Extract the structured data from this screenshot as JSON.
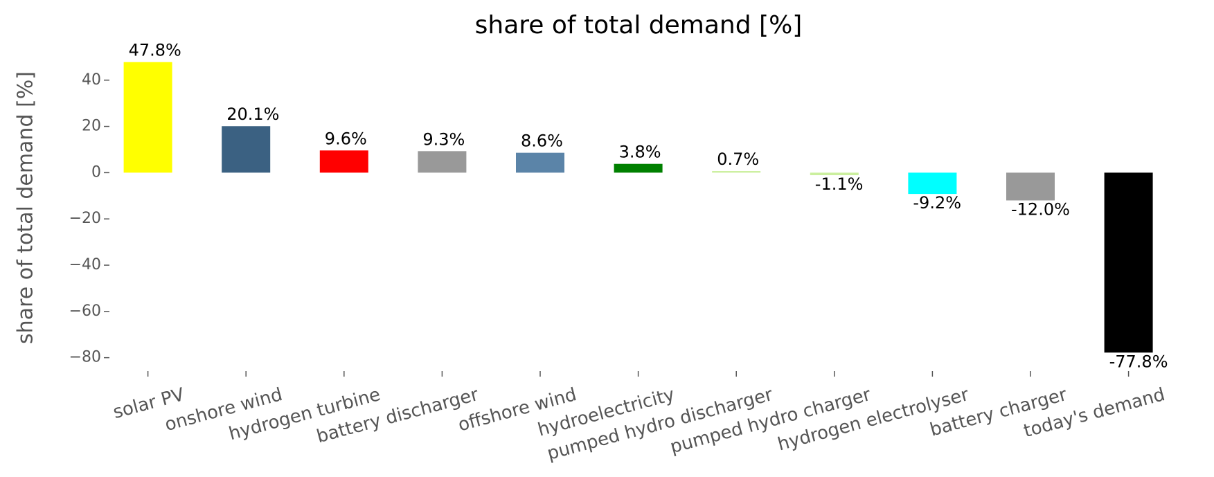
{
  "chart_data": {
    "type": "bar",
    "title": "share of total demand [%]",
    "y_label": "share of total demand [%]",
    "categories": [
      "solar PV",
      "onshore wind",
      "hydrogen turbine",
      "battery discharger",
      "offshore wind",
      "hydroelectricity",
      "pumped hydro discharger",
      "pumped hydro charger",
      "hydrogen electrolyser",
      "battery charger",
      "today's demand"
    ],
    "values": [
      47.8,
      20.1,
      9.6,
      9.3,
      8.6,
      3.8,
      0.7,
      -1.1,
      -9.2,
      -12.0,
      -77.8
    ],
    "value_labels": [
      "47.8%",
      "20.1%",
      "9.6%",
      "9.3%",
      "8.6%",
      "3.8%",
      "0.7%",
      "-1.1%",
      "-9.2%",
      "-12.0%",
      "-77.8%"
    ],
    "colors": [
      "#ffff00",
      "#3b6182",
      "#ff0000",
      "#999999",
      "#5b84a8",
      "#008000",
      "#cbef9e",
      "#cbef9e",
      "#00ffff",
      "#999999",
      "#000000"
    ],
    "ylim": [
      -84,
      54
    ],
    "yticks": [
      {
        "value": -80,
        "label": "−80"
      },
      {
        "value": -60,
        "label": "−60"
      },
      {
        "value": -40,
        "label": "−40"
      },
      {
        "value": -20,
        "label": "−20"
      },
      0,
      20,
      40
    ]
  }
}
